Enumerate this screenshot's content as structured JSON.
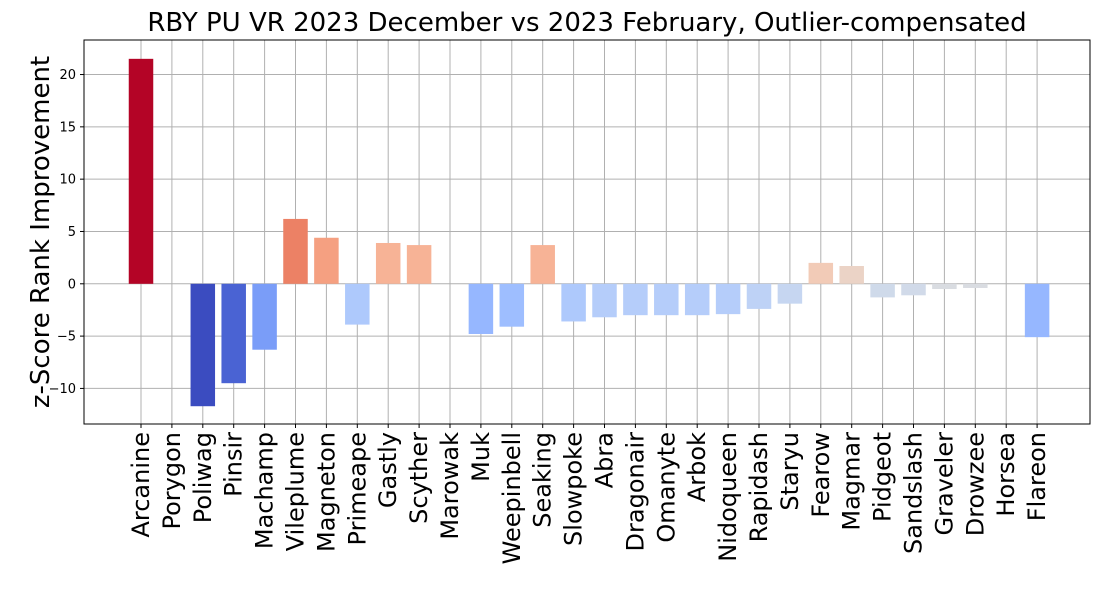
{
  "chart_data": {
    "type": "bar",
    "title": "RBY PU VR 2023 December vs 2023 February, Outlier-compensated",
    "xlabel": "",
    "ylabel": "z-Score Rank Improvement",
    "ylim": [
      -13.4,
      23.3
    ],
    "yticks": [
      -10,
      -5,
      0,
      5,
      10,
      15,
      20
    ],
    "grid": true,
    "colormap": "coolwarm",
    "categories": [
      "Arcanine",
      "Porygon",
      "Poliwag",
      "Pinsir",
      "Machamp",
      "Vileplume",
      "Magneton",
      "Primeape",
      "Gastly",
      "Scyther",
      "Marowak",
      "Muk",
      "Weepinbell",
      "Seaking",
      "Slowpoke",
      "Abra",
      "Dragonair",
      "Omanyte",
      "Arbok",
      "Nidoqueen",
      "Rapidash",
      "Staryu",
      "Fearow",
      "Magmar",
      "Pidgeot",
      "Sandslash",
      "Graveler",
      "Drowzee",
      "Horsea",
      "Flareon"
    ],
    "values": [
      21.5,
      0,
      -11.7,
      -9.5,
      -6.3,
      6.2,
      4.4,
      -3.9,
      3.9,
      3.7,
      0,
      -4.8,
      -4.1,
      3.7,
      -3.6,
      -3.2,
      -3.0,
      -3.0,
      -3.0,
      -2.9,
      -2.4,
      -1.9,
      2.0,
      1.7,
      -1.3,
      -1.1,
      -0.5,
      -0.4,
      0,
      -5.1
    ],
    "colors": [
      "#b40426",
      "#dddcdc",
      "#3b4cc0",
      "#4a63d3",
      "#7a9df8",
      "#ec8165",
      "#f5a081",
      "#aec9fc",
      "#f7b396",
      "#f7b396",
      "#dddcdc",
      "#96b7ff",
      "#9ebeff",
      "#f7b396",
      "#aec9fc",
      "#b5cdfa",
      "#b5cdfa",
      "#b5cdfa",
      "#b5cdfa",
      "#b5cdfa",
      "#bed2f6",
      "#c6d6f1",
      "#f2cbb7",
      "#ebd3c6",
      "#cfdaea",
      "#d1dae9",
      "#d9dce1",
      "#d9dce1",
      "#dddcdc",
      "#96b7ff"
    ]
  }
}
